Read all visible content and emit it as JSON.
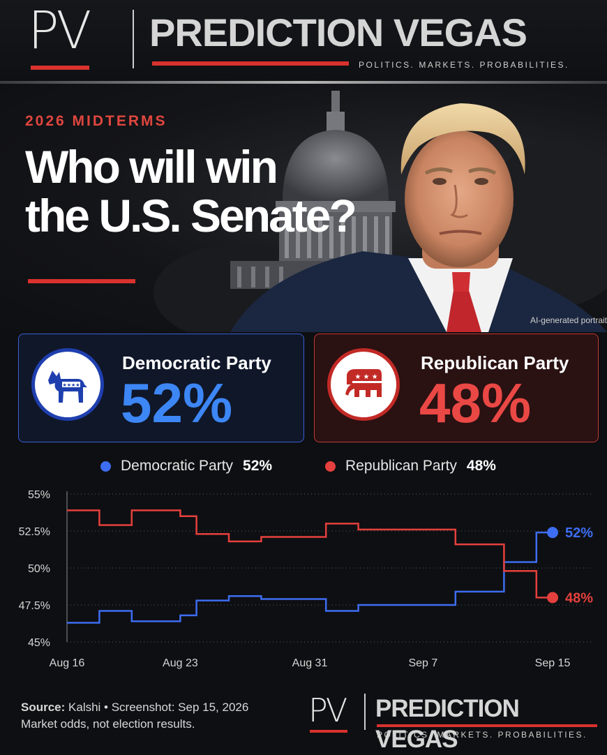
{
  "header": {
    "logo_mark": "PV",
    "brand": "PREDICTION VEGAS",
    "tagline": "POLITICS. MARKETS. PROBABILITIES."
  },
  "hero": {
    "kicker": "2026 MIDTERMS",
    "headline_line1": "Who will win",
    "headline_line2": "the U.S. Senate?",
    "photo_credit": "AI-generated portrait"
  },
  "cards": {
    "dem": {
      "name": "Democratic Party",
      "pct": "52%"
    },
    "rep": {
      "name": "Republican Party",
      "pct": "48%"
    }
  },
  "legend": {
    "dem_name": "Democratic Party",
    "dem_val": "52%",
    "rep_name": "Republican Party",
    "rep_val": "48%"
  },
  "colors": {
    "dem": "#3d6df2",
    "rep": "#e5403d",
    "accent": "#d9322e"
  },
  "chart_data": {
    "type": "line",
    "title": "",
    "xlabel": "",
    "ylabel": "",
    "ylim": [
      45,
      55
    ],
    "yticks": [
      45,
      47.5,
      50,
      52.5,
      55
    ],
    "ytick_labels": [
      "45%",
      "47.5%",
      "50%",
      "52.5%",
      "55%"
    ],
    "xticks": [
      "Aug 16",
      "Aug 23",
      "Aug 31",
      "Sep 7",
      "Sep 15"
    ],
    "x": [
      "Aug 16",
      "Aug 17",
      "Aug 18",
      "Aug 20",
      "Aug 21",
      "Aug 23",
      "Aug 24",
      "Aug 25",
      "Aug 26",
      "Aug 27",
      "Aug 28",
      "Aug 29",
      "Aug 31",
      "Sep 1",
      "Sep 2",
      "Sep 3",
      "Sep 4",
      "Sep 5",
      "Sep 6",
      "Sep 7",
      "Sep 9",
      "Sep 10",
      "Sep 12",
      "Sep 13",
      "Sep 14",
      "Sep 15"
    ],
    "series": [
      {
        "name": "Democratic Party",
        "color": "#3d6df2",
        "values": [
          46.3,
          46.3,
          47.1,
          46.4,
          46.4,
          46.8,
          47.8,
          47.8,
          48.1,
          48.1,
          47.9,
          47.9,
          47.9,
          47.1,
          47.1,
          47.5,
          47.5,
          47.5,
          47.5,
          47.5,
          48.4,
          48.4,
          50.4,
          50.4,
          52.4,
          52.4
        ],
        "end_label": "52%"
      },
      {
        "name": "Republican Party",
        "color": "#e5403d",
        "values": [
          53.9,
          53.9,
          52.9,
          53.9,
          53.9,
          53.5,
          52.3,
          52.3,
          51.8,
          51.8,
          52.1,
          52.1,
          52.1,
          53.0,
          53.0,
          52.6,
          52.6,
          52.6,
          52.6,
          52.6,
          51.6,
          51.6,
          49.8,
          49.8,
          48.0,
          48.0
        ],
        "end_label": "48%"
      }
    ],
    "grid": true,
    "legend_position": "top"
  },
  "footer": {
    "source_label": "Source:",
    "source_text": " Kalshi • Screenshot: Sep 15, 2026",
    "disclaimer": "Market odds, not election results.",
    "logo_mark": "PV",
    "brand": "PREDICTION VEGAS",
    "tagline": "POLITICS. MARKETS. PROBABILITIES."
  }
}
